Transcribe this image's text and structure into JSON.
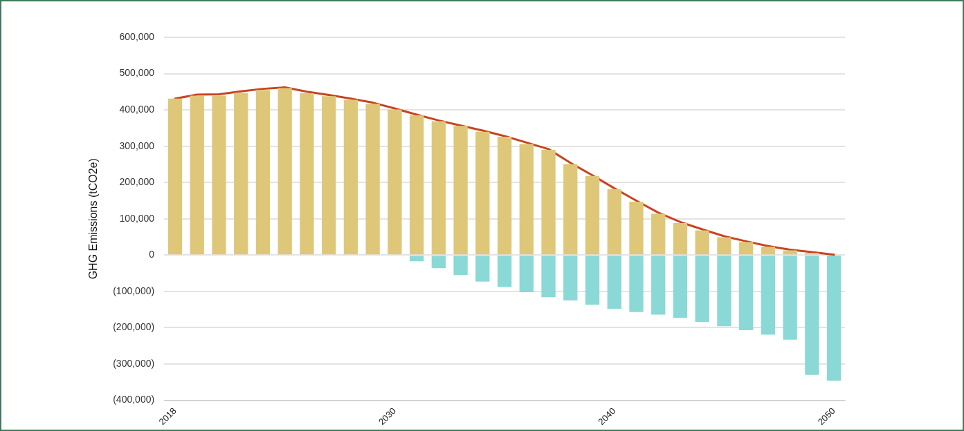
{
  "chart_data": {
    "type": "bar",
    "ylabel": "GHG Emissions (tCO2e)",
    "categories": [
      "2018",
      null,
      null,
      null,
      null,
      null,
      null,
      null,
      null,
      null,
      "2030",
      null,
      null,
      null,
      null,
      null,
      null,
      null,
      null,
      null,
      "2040",
      null,
      null,
      null,
      null,
      null,
      null,
      null,
      null,
      null,
      "2050"
    ],
    "series": [
      {
        "color": "#dfc77a",
        "values": [
          431000,
          439000,
          439000,
          447000,
          455000,
          460000,
          446000,
          438000,
          428000,
          417000,
          401000,
          385000,
          369000,
          356000,
          340000,
          326000,
          306000,
          290000,
          251000,
          218000,
          182000,
          147000,
          114000,
          88000,
          68000,
          49000,
          36000,
          23000,
          13000,
          6000,
          null
        ]
      },
      {
        "color": "#8ad9d6",
        "values": [
          null,
          null,
          null,
          null,
          null,
          null,
          null,
          null,
          null,
          null,
          null,
          -17000,
          -36000,
          -55000,
          -73000,
          -88000,
          -102000,
          -116000,
          -125000,
          -137000,
          -148000,
          -157000,
          -164000,
          -173000,
          -184000,
          -196000,
          -207000,
          -219000,
          -233000,
          -330000,
          -346000
        ]
      },
      {
        "type": "line",
        "color": "#c8441e",
        "values": [
          431000,
          442000,
          443000,
          451000,
          458000,
          462000,
          450000,
          441000,
          431000,
          420000,
          404000,
          387000,
          371000,
          357000,
          343000,
          328000,
          310000,
          292000,
          254000,
          220000,
          184000,
          150000,
          117000,
          91000,
          71000,
          52000,
          38000,
          25000,
          15000,
          8000,
          1000
        ]
      }
    ],
    "stacked": true,
    "marker": "none",
    "grid": "y",
    "ylim": [
      -400000,
      600000
    ],
    "yticks": [
      {
        "value": -400000,
        "label": "(400,000)"
      },
      {
        "value": -300000,
        "label": "(300,000)"
      },
      {
        "value": -200000,
        "label": "(200,000)"
      },
      {
        "value": -100000,
        "label": "(100,000)"
      },
      0,
      {
        "value": 100000,
        "label": "100,000"
      },
      {
        "value": 200000,
        "label": "200,000"
      },
      {
        "value": 300000,
        "label": "300,000"
      },
      {
        "value": 400000,
        "label": "400,000"
      },
      {
        "value": 500000,
        "label": "500,000"
      },
      {
        "value": 600000,
        "label": "600,000"
      }
    ]
  }
}
